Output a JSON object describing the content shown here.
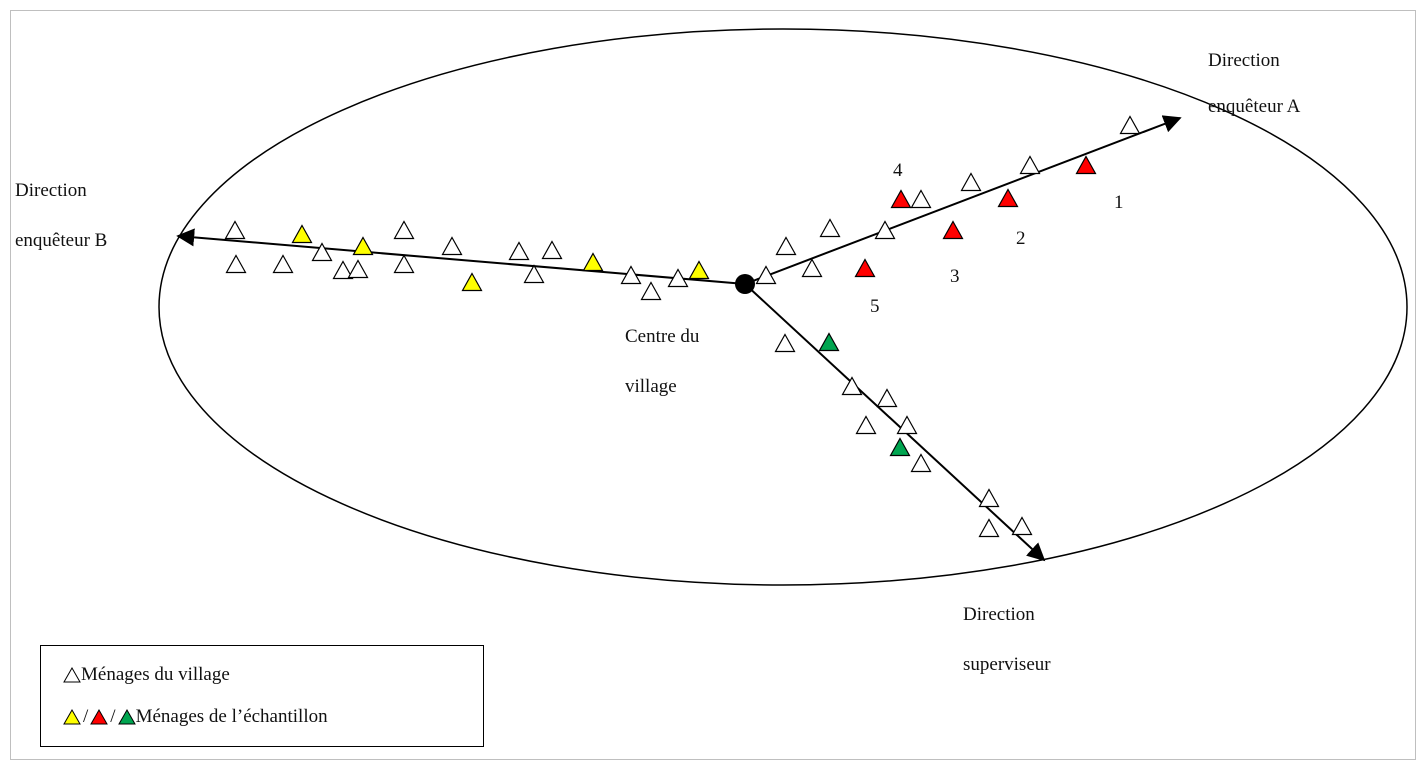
{
  "title_fragment": "",
  "labels": {
    "direction_a": [
      "Direction",
      "enquêteur A"
    ],
    "direction_b": [
      "Direction",
      "enquêteur B"
    ],
    "direction_supervisor": [
      "Direction",
      "superviseur"
    ],
    "village_centre": [
      "Centre du",
      "village"
    ]
  },
  "sample_numbers": [
    "1",
    "2",
    "3",
    "4",
    "5"
  ],
  "legend": {
    "village_households": "Ménages du village",
    "separator": "/",
    "sample_households": "Ménages de l’échantillon"
  },
  "colors": {
    "household_outline": "#000000",
    "sample_b": "#ffff00",
    "sample_a": "#ff0000",
    "sample_supervisor": "#00a550"
  }
}
